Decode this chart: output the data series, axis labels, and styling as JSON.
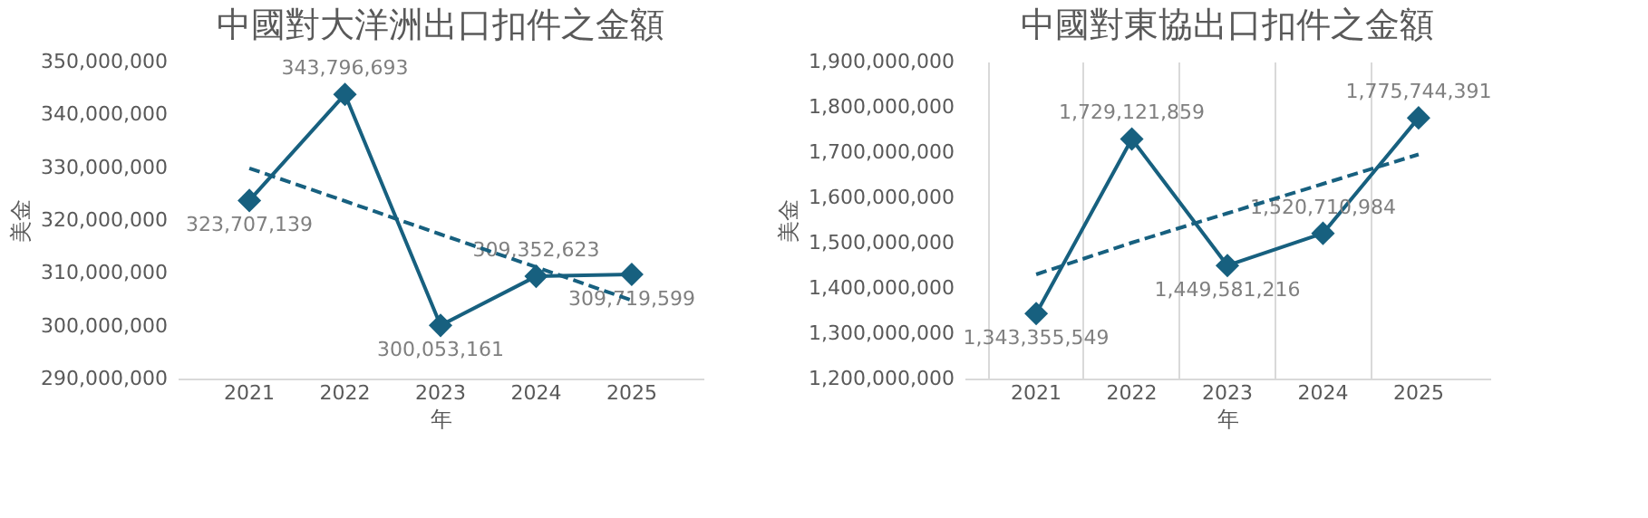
{
  "chart_data": [
    {
      "type": "line",
      "title": "中國對大洋洲出口扣件之金額",
      "xlabel": "年",
      "ylabel": "美金",
      "categories": [
        "2021",
        "2022",
        "2023",
        "2024",
        "2025"
      ],
      "series": [
        {
          "color": "#17607f",
          "values": [
            323707139,
            343796693,
            300053161,
            309352623,
            309719599
          ],
          "marker": "diamond",
          "line_style": "solid",
          "data_labels": true,
          "value_labels": [
            "323,707,139",
            "343,796,693",
            "300,053,161",
            "309,352,623",
            "309,719,599"
          ]
        },
        {
          "type": "line",
          "color": "#17607f",
          "values": [
            329800000,
            323600000,
            317300000,
            311100000,
            304800000
          ],
          "marker": "none",
          "line_style": "dashed"
        }
      ],
      "ylim": [
        290000000,
        350000000
      ],
      "yticks": [
        {
          "value": 290000000,
          "label": "290,000,000"
        },
        {
          "value": 300000000,
          "label": "300,000,000"
        },
        {
          "value": 310000000,
          "label": "310,000,000"
        },
        {
          "value": 320000000,
          "label": "320,000,000"
        },
        {
          "value": 330000000,
          "label": "330,000,000"
        },
        {
          "value": 340000000,
          "label": "340,000,000"
        },
        {
          "value": 350000000,
          "label": "350,000,000"
        }
      ],
      "grid": false
    },
    {
      "type": "line",
      "title": "中國對東協出口扣件之金額",
      "xlabel": "年",
      "ylabel": "美金",
      "categories": [
        "2021",
        "2022",
        "2023",
        "2024",
        "2025"
      ],
      "series": [
        {
          "color": "#17607f",
          "values": [
            1343355549,
            1729121859,
            1449581216,
            1520710984,
            1775744391
          ],
          "marker": "diamond",
          "line_style": "solid",
          "data_labels": true,
          "value_labels": [
            "1,343,355,549",
            "1,729,121,859",
            "1,449,581,216",
            "1,520,710,984",
            "1,775,744,391"
          ]
        },
        {
          "type": "line",
          "color": "#17607f",
          "values": [
            1430000000,
            1500000000,
            1565000000,
            1630000000,
            1695000000
          ],
          "marker": "none",
          "line_style": "dashed"
        }
      ],
      "ylim": [
        1200000000,
        1900000000
      ],
      "yticks": [
        {
          "value": 1200000000,
          "label": "1,200,000,000"
        },
        {
          "value": 1300000000,
          "label": "1,300,000,000"
        },
        {
          "value": 1400000000,
          "label": "1,400,000,000"
        },
        {
          "value": 1500000000,
          "label": "1,500,000,000"
        },
        {
          "value": 1600000000,
          "label": "1,600,000,000"
        },
        {
          "value": 1700000000,
          "label": "1,700,000,000"
        },
        {
          "value": 1800000000,
          "label": "1,800,000,000"
        },
        {
          "value": 1900000000,
          "label": "1,900,000,000"
        }
      ],
      "grid": "x"
    }
  ]
}
